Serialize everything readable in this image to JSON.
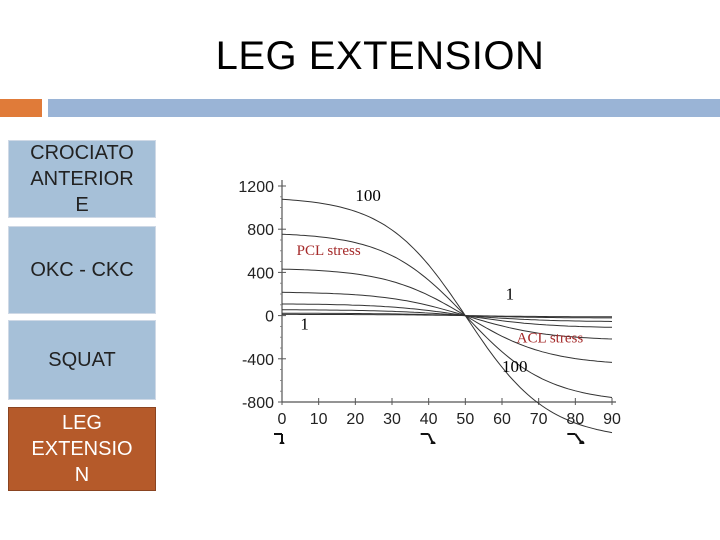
{
  "slide": {
    "title": "LEG EXTENSION"
  },
  "sidebar": {
    "items": [
      {
        "label": "CROCIATO\nANTERIOR\nE"
      },
      {
        "label": "OKC - CKC"
      },
      {
        "label": "SQUAT"
      },
      {
        "label": "LEG\nEXTENSIO\nN"
      }
    ]
  },
  "colors": {
    "accent": "#e07b39",
    "header_bar": "#9ab4d6",
    "nav": "#a6c0d8",
    "nav_active": "#b55a2a",
    "annotation": "#a52a2a"
  },
  "chart_data": {
    "type": "line",
    "title": "",
    "xlabel": "",
    "ylabel": "",
    "xlim": [
      0,
      90
    ],
    "ylim": [
      -800,
      1200
    ],
    "x_ticks": [
      "0",
      "10",
      "20",
      "30",
      "40",
      "50",
      "60",
      "70",
      "80",
      "90"
    ],
    "y_ticks": [
      "1200",
      "800",
      "400",
      "0",
      "-400",
      "-800"
    ],
    "grid": false,
    "crossover_x": 50,
    "series_amplitudes": [
      1,
      2,
      5,
      10,
      20,
      40,
      70,
      100
    ],
    "series": [
      {
        "amplitude": 100,
        "x": [
          0,
          10,
          20,
          30,
          40,
          50,
          60,
          70,
          80,
          90
        ],
        "y": [
          1090,
          1000,
          850,
          600,
          300,
          0,
          -250,
          -430,
          -560,
          -640
        ]
      },
      {
        "amplitude": 1,
        "x": [
          0,
          10,
          20,
          30,
          40,
          50,
          60,
          70,
          80,
          90
        ],
        "y": [
          11,
          10,
          8,
          6,
          3,
          0,
          -2,
          -4,
          -6,
          -6
        ]
      }
    ],
    "annotations": [
      {
        "text": "100",
        "x": 20,
        "y": 1060,
        "color": "#000000"
      },
      {
        "text": "PCL stress",
        "x": 4,
        "y": 560,
        "color": "#a52a2a"
      },
      {
        "text": "1",
        "x": 61,
        "y": 150,
        "color": "#000000"
      },
      {
        "text": "1",
        "x": 5,
        "y": -130,
        "color": "#000000"
      },
      {
        "text": "ACL stress",
        "x": 64,
        "y": -250,
        "color": "#a52a2a"
      },
      {
        "text": "100",
        "x": 60,
        "y": -520,
        "color": "#000000"
      }
    ],
    "knee_icons_at": [
      0,
      40,
      80
    ]
  }
}
